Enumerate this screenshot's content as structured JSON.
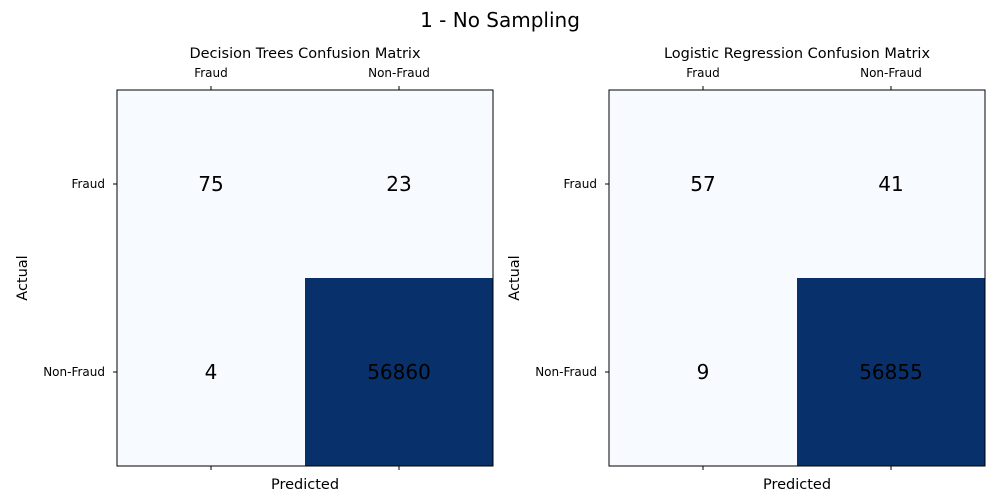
{
  "figure": {
    "suptitle": "1 - No Sampling"
  },
  "colors": {
    "low": "#f7fbff",
    "high": "#08306b",
    "text": "#000000",
    "frame": "#000000"
  },
  "chart_data": [
    {
      "type": "heatmap",
      "title": "Decision Trees Confusion Matrix",
      "xlabel": "Predicted",
      "ylabel": "Actual",
      "x_ticklabels": [
        "Fraud",
        "Non-Fraud"
      ],
      "y_ticklabels": [
        "Fraud",
        "Non-Fraud"
      ],
      "values": [
        [
          75,
          23
        ],
        [
          4,
          56860
        ]
      ],
      "labels": [
        [
          "75",
          "23"
        ],
        [
          "4",
          "56860"
        ]
      ]
    },
    {
      "type": "heatmap",
      "title": "Logistic Regression Confusion Matrix",
      "xlabel": "Predicted",
      "ylabel": "Actual",
      "x_ticklabels": [
        "Fraud",
        "Non-Fraud"
      ],
      "y_ticklabels": [
        "Fraud",
        "Non-Fraud"
      ],
      "values": [
        [
          57,
          41
        ],
        [
          9,
          56855
        ]
      ],
      "labels": [
        [
          "57",
          "41"
        ],
        [
          "9",
          "56855"
        ]
      ]
    }
  ]
}
